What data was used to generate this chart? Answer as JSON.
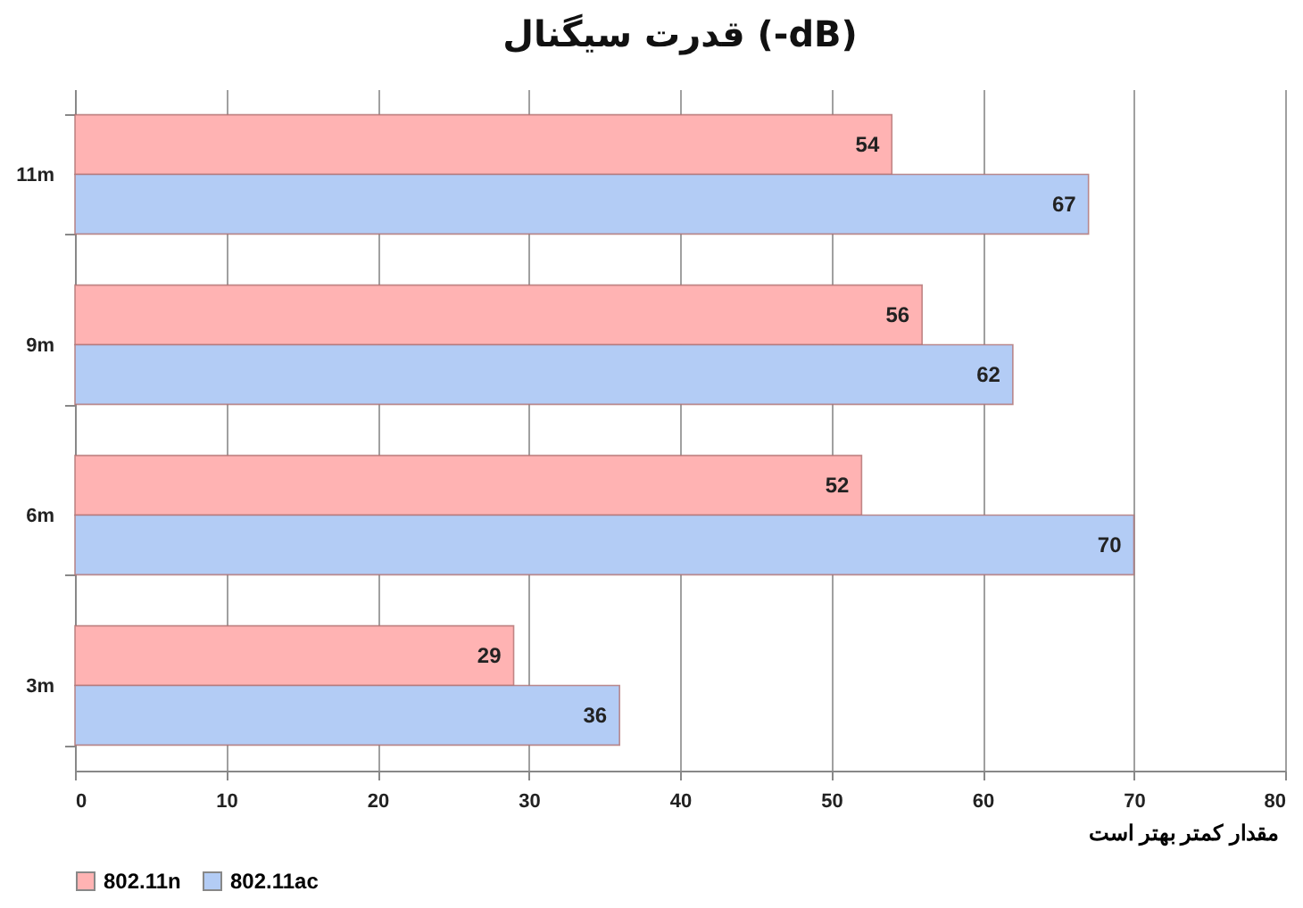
{
  "chart_data": {
    "type": "bar",
    "orientation": "horizontal",
    "title": "قدرت سیگنال (-dB)",
    "categories": [
      "11m",
      "9m",
      "6m",
      "3m"
    ],
    "series": [
      {
        "name": "802.11n",
        "color": "#ffb3b3",
        "values": [
          54,
          56,
          52,
          29
        ]
      },
      {
        "name": "802.11ac",
        "color": "#b3ccf5",
        "values": [
          67,
          62,
          70,
          36
        ]
      }
    ],
    "xlim": [
      0,
      80
    ],
    "xticks": [
      0,
      10,
      20,
      30,
      40,
      50,
      60,
      70,
      80
    ],
    "grid": "x",
    "legend": "bottom",
    "data_labels": true,
    "annotations": [
      "مقدار کمتر بهتر است"
    ]
  }
}
